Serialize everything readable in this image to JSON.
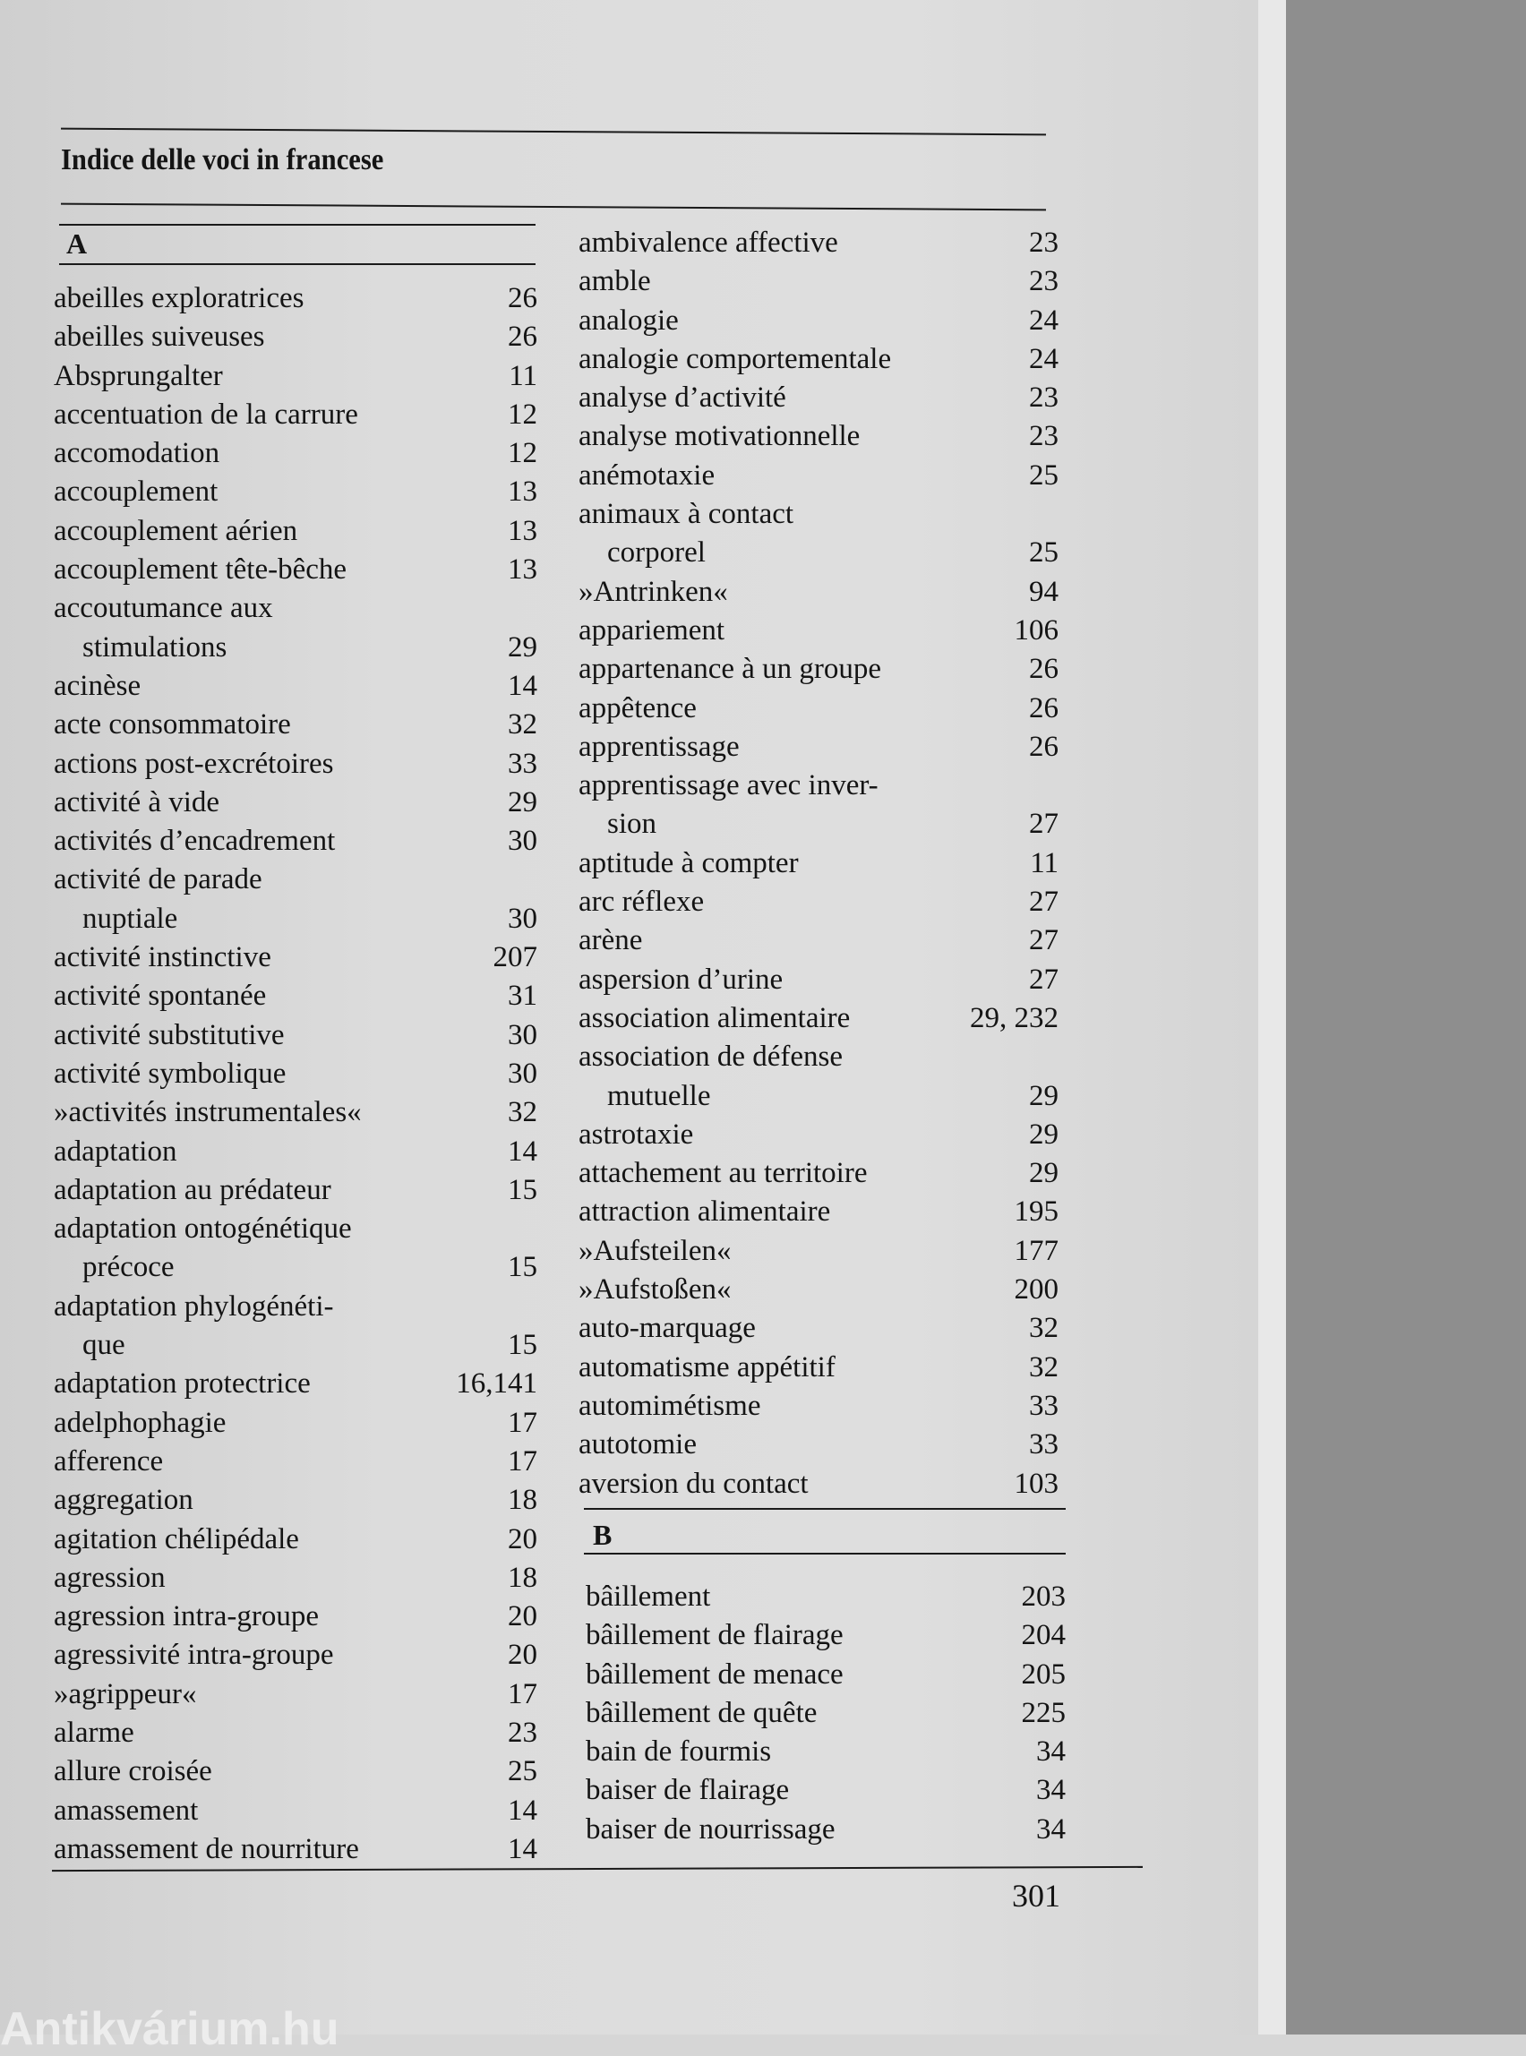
{
  "title": "Indice delle voci in francese",
  "page_number": "301",
  "watermark": "Antikvárium.hu",
  "sections": {
    "A_left": {
      "letter": "A",
      "entries": [
        {
          "term": "abeilles exploratrices",
          "page": "26"
        },
        {
          "term": "abeilles suiveuses",
          "page": "26"
        },
        {
          "term": "Absprungalter",
          "page": "11"
        },
        {
          "term": "accentuation de la carrure",
          "page": "12"
        },
        {
          "term": "accomodation",
          "page": "12"
        },
        {
          "term": "accouplement",
          "page": "13"
        },
        {
          "term": "accouplement aérien",
          "page": "13"
        },
        {
          "term": "accouplement tête-bêche",
          "page": "13"
        },
        {
          "term": "accoutumance aux",
          "cont": "stimulations",
          "page": "29"
        },
        {
          "term": "acinèse",
          "page": "14"
        },
        {
          "term": "acte consommatoire",
          "page": "32"
        },
        {
          "term": "actions post-excrétoires",
          "page": "33"
        },
        {
          "term": "activité à vide",
          "page": "29"
        },
        {
          "term": "activités d’encadrement",
          "page": "30"
        },
        {
          "term": "activité de parade",
          "cont": "nuptiale",
          "page": "30"
        },
        {
          "term": "activité instinctive",
          "page": "207"
        },
        {
          "term": "activité spontanée",
          "page": "31"
        },
        {
          "term": "activité substitutive",
          "page": "30"
        },
        {
          "term": "activité symbolique",
          "page": "30"
        },
        {
          "term": "»activités instrumentales«",
          "page": "32"
        },
        {
          "term": "adaptation",
          "page": "14"
        },
        {
          "term": "adaptation au prédateur",
          "page": "15"
        },
        {
          "term": "adaptation ontogénétique",
          "cont": "précoce",
          "page": "15"
        },
        {
          "term": "adaptation phylogénéti-",
          "cont": "que",
          "page": "15"
        },
        {
          "term": "adaptation protectrice",
          "page": "16,141"
        },
        {
          "term": "adelphophagie",
          "page": "17"
        },
        {
          "term": "afference",
          "page": "17"
        },
        {
          "term": "aggregation",
          "page": "18"
        },
        {
          "term": "agitation chélipédale",
          "page": "20"
        },
        {
          "term": "agression",
          "page": "18"
        },
        {
          "term": "agression intra-groupe",
          "page": "20"
        },
        {
          "term": "agressivité intra-groupe",
          "page": "20"
        },
        {
          "term": "»agrippeur«",
          "page": "17"
        },
        {
          "term": "alarme",
          "page": "23"
        },
        {
          "term": "allure croisée",
          "page": "25"
        },
        {
          "term": "amassement",
          "page": "14"
        },
        {
          "term": "amassement de nourriture",
          "page": "14"
        }
      ]
    },
    "A_right": {
      "entries": [
        {
          "term": "ambivalence affective",
          "page": "23"
        },
        {
          "term": "amble",
          "page": "23"
        },
        {
          "term": "analogie",
          "page": "24"
        },
        {
          "term": "analogie comportementale",
          "page": "24"
        },
        {
          "term": "analyse d’activité",
          "page": "23"
        },
        {
          "term": "analyse motivationnelle",
          "page": "23"
        },
        {
          "term": "anémotaxie",
          "page": "25"
        },
        {
          "term": "animaux à contact",
          "cont": "corporel",
          "page": "25"
        },
        {
          "term": "»Antrinken«",
          "page": "94"
        },
        {
          "term": "appariement",
          "page": "106"
        },
        {
          "term": "appartenance à un groupe",
          "page": "26"
        },
        {
          "term": "appêtence",
          "page": "26"
        },
        {
          "term": "apprentissage",
          "page": "26"
        },
        {
          "term": "apprentissage avec inver-",
          "cont": "sion",
          "page": "27"
        },
        {
          "term": "aptitude à compter",
          "page": "11"
        },
        {
          "term": "arc réflexe",
          "page": "27"
        },
        {
          "term": "arène",
          "page": "27"
        },
        {
          "term": "aspersion d’urine",
          "page": "27"
        },
        {
          "term": "association alimentaire",
          "page": "29, 232"
        },
        {
          "term": "association de défense",
          "cont": "mutuelle",
          "page": "29"
        },
        {
          "term": "astrotaxie",
          "page": "29"
        },
        {
          "term": "attachement au territoire",
          "page": "29"
        },
        {
          "term": "attraction alimentaire",
          "page": "195"
        },
        {
          "term": "»Aufsteilen«",
          "page": "177"
        },
        {
          "term": "»Aufstoßen«",
          "page": "200"
        },
        {
          "term": "auto-marquage",
          "page": "32"
        },
        {
          "term": "automatisme appétitif",
          "page": "32"
        },
        {
          "term": "automimétisme",
          "page": "33"
        },
        {
          "term": "autotomie",
          "page": "33"
        },
        {
          "term": "aversion du contact",
          "page": "103"
        }
      ]
    },
    "B": {
      "letter": "B",
      "entries": [
        {
          "term": "bâillement",
          "page": "203"
        },
        {
          "term": "bâillement de flairage",
          "page": "204"
        },
        {
          "term": "bâillement de menace",
          "page": "205"
        },
        {
          "term": "bâillement de quête",
          "page": "225"
        },
        {
          "term": "bain de fourmis",
          "page": "34"
        },
        {
          "term": "baiser de flairage",
          "page": "34"
        },
        {
          "term": "baiser de nourrissage",
          "page": "34"
        }
      ]
    }
  }
}
